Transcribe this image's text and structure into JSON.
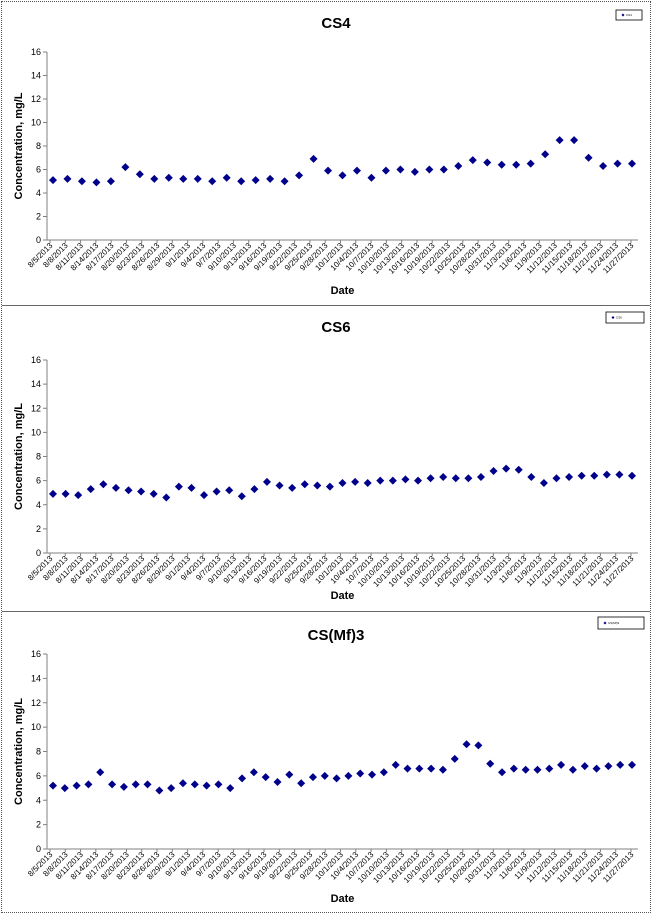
{
  "colors": {
    "marker": "#00008B",
    "axis": "#808080",
    "background": "#ffffff"
  },
  "chart_data": [
    {
      "type": "scatter",
      "title": "CS4",
      "xlabel": "Date",
      "ylabel": "Concentration, mg/L",
      "ylim": [
        0,
        16
      ],
      "yticks": [
        "0",
        "2",
        "4",
        "6",
        "8",
        "10",
        "12",
        "14",
        "16"
      ],
      "xlim": [
        "8/5/2013",
        "11/29/2013"
      ],
      "xticks": [
        "8/5/2013",
        "8/8/2013",
        "8/11/2013",
        "8/14/2013",
        "8/17/2013",
        "8/20/2013",
        "8/23/2013",
        "8/26/2013",
        "8/29/2013",
        "9/1/2013",
        "9/4/2013",
        "9/7/2013",
        "9/10/2013",
        "9/13/2013",
        "9/16/2013",
        "9/19/2013",
        "9/22/2013",
        "9/25/2013",
        "9/28/2013",
        "10/1/2013",
        "10/4/2013",
        "10/7/2013",
        "10/10/2013",
        "10/13/2013",
        "10/16/2013",
        "10/19/2013",
        "10/22/2013",
        "10/25/2013",
        "10/28/2013",
        "10/31/2013",
        "11/3/2013",
        "11/6/2013",
        "11/9/2013",
        "11/12/2013",
        "11/15/2013",
        "11/18/2013",
        "11/21/2013",
        "11/24/2013",
        "11/27/2013"
      ],
      "grid": false,
      "legend": {
        "position": "top-right",
        "entries": [
          "CS4"
        ]
      },
      "series": [
        {
          "x": [
            "8/5/2013",
            "8/7/2013",
            "8/9/2013",
            "8/12/2013",
            "8/19/2013",
            "8/22/2013",
            "8/24/2013",
            "8/26/2013",
            "8/29/2013",
            "9/2/2013",
            "9/5/2013",
            "9/9/2013",
            "9/12/2013",
            "9/14/2013",
            "9/20/2013",
            "9/23/2013",
            "9/26/2013",
            "9/30/2013",
            "10/5/2013",
            "10/7/2013",
            "10/11/2013",
            "10/14/2013",
            "10/16/2013",
            "10/20/2013",
            "10/23/2013",
            "10/27/2013",
            "10/30/2013",
            "11/1/2013",
            "11/2/2013",
            "11/6/2013",
            "11/9/2013",
            "11/10/2013",
            "11/13/2013",
            "11/16/2013",
            "11/18/2013",
            "11/22/2013",
            "11/26/2013",
            "11/29/2013",
            "11/30/2013",
            "11/29/2013",
            "11/30/2013"
          ],
          "values": [
            5.1,
            5.2,
            5.0,
            4.9,
            5.0,
            6.2,
            5.6,
            5.2,
            5.3,
            5.2,
            5.2,
            5.0,
            5.3,
            5.0,
            5.1,
            5.2,
            5.0,
            5.5,
            6.9,
            5.9,
            5.5,
            5.9,
            5.3,
            5.9,
            6.0,
            5.8,
            6.0,
            6.0,
            6.3,
            6.8,
            6.6,
            6.4,
            6.4,
            6.5,
            7.3,
            8.5,
            8.5,
            7.0,
            6.3,
            6.5,
            6.5
          ]
        }
      ]
    },
    {
      "type": "scatter",
      "title": "CS6",
      "xlabel": "Date",
      "ylabel": "Concentration, mg/L",
      "ylim": [
        0,
        16
      ],
      "yticks": [
        "0",
        "2",
        "4",
        "6",
        "8",
        "10",
        "12",
        "14",
        "16"
      ],
      "xlim": [
        "8/5/2013",
        "11/29/2013"
      ],
      "xticks": [
        "8/5/2013",
        "8/8/2013",
        "8/11/2013",
        "8/14/2013",
        "8/17/2013",
        "8/20/2013",
        "8/23/2013",
        "8/26/2013",
        "8/29/2013",
        "9/1/2013",
        "9/4/2013",
        "9/7/2013",
        "9/10/2013",
        "9/13/2013",
        "9/16/2013",
        "9/19/2013",
        "9/22/2013",
        "9/25/2013",
        "9/28/2013",
        "10/1/2013",
        "10/4/2013",
        "10/7/2013",
        "10/10/2013",
        "10/13/2013",
        "10/16/2013",
        "10/19/2013",
        "10/22/2013",
        "10/25/2013",
        "10/28/2013",
        "10/31/2013",
        "11/3/2013",
        "11/6/2013",
        "11/9/2013",
        "11/12/2013",
        "11/15/2013",
        "11/18/2013",
        "11/21/2013",
        "11/24/2013",
        "11/27/2013"
      ],
      "grid": false,
      "legend": {
        "position": "top-right",
        "entries": [
          "CS6"
        ]
      },
      "series": [
        {
          "x": [
            "8/5/2013",
            "8/7/2013",
            "8/9/2013",
            "8/12/2013",
            "8/17/2013",
            "8/20/2013",
            "8/22/2013",
            "8/24/2013",
            "8/28/2013",
            "8/30/2013",
            "9/1/2013",
            "9/4/2013",
            "9/6/2013",
            "9/8/2013",
            "9/12/2013",
            "9/14/2013",
            "9/16/2013",
            "9/19/2013",
            "9/22/2013",
            "9/24/2013",
            "9/30/2013",
            "10/2/2013",
            "10/6/2013",
            "10/8/2013",
            "10/11/2013",
            "10/15/2013",
            "10/17/2013",
            "10/20/2013",
            "10/23/2013",
            "10/25/2013",
            "10/28/2013",
            "10/31/2013",
            "11/2/2013",
            "11/4/2013",
            "11/7/2013",
            "11/9/2013",
            "11/11/2013",
            "11/13/2013",
            "11/15/2013",
            "11/17/2013",
            "11/20/2013",
            "11/23/2013",
            "11/26/2013",
            "11/28/2013",
            "11/30/2013",
            "12/2/2013",
            "12/4/2013"
          ],
          "values": [
            4.9,
            4.9,
            4.8,
            5.3,
            5.7,
            5.4,
            5.2,
            5.1,
            4.9,
            4.6,
            5.5,
            5.4,
            4.8,
            5.1,
            5.2,
            4.7,
            5.3,
            5.9,
            5.6,
            5.4,
            5.7,
            5.6,
            5.5,
            5.8,
            5.9,
            5.8,
            6.0,
            6.0,
            6.1,
            6.0,
            6.2,
            6.3,
            6.2,
            6.2,
            6.3,
            6.8,
            7.0,
            6.9,
            6.3,
            5.8,
            6.2,
            6.3,
            6.4,
            6.4,
            6.5,
            6.5,
            6.4
          ]
        }
      ]
    },
    {
      "type": "scatter",
      "title": "CS(Mf)3",
      "xlabel": "Date",
      "ylabel": "Concentration, mg/L",
      "ylim": [
        0,
        16
      ],
      "yticks": [
        "0",
        "2",
        "4",
        "6",
        "8",
        "10",
        "12",
        "14",
        "16"
      ],
      "xlim": [
        "8/5/2013",
        "11/29/2013"
      ],
      "xticks": [
        "8/5/2013",
        "8/8/2013",
        "8/11/2013",
        "8/14/2013",
        "8/17/2013",
        "8/20/2013",
        "8/23/2013",
        "8/26/2013",
        "8/29/2013",
        "9/1/2013",
        "9/4/2013",
        "9/7/2013",
        "9/10/2013",
        "9/13/2013",
        "9/16/2013",
        "9/19/2013",
        "9/22/2013",
        "9/25/2013",
        "9/28/2013",
        "10/1/2013",
        "10/4/2013",
        "10/7/2013",
        "10/10/2013",
        "10/13/2013",
        "10/16/2013",
        "10/19/2013",
        "10/22/2013",
        "10/25/2013",
        "10/28/2013",
        "10/31/2013",
        "11/3/2013",
        "11/6/2013",
        "11/9/2013",
        "11/12/2013",
        "11/15/2013",
        "11/18/2013",
        "11/21/2013",
        "11/24/2013",
        "11/27/2013"
      ],
      "grid": false,
      "legend": {
        "position": "top-right",
        "entries": [
          "CS(Mf)3"
        ]
      },
      "series": [
        {
          "x": [
            "8/5/2013",
            "8/7/2013",
            "8/9/2013",
            "8/12/2013",
            "8/17/2013",
            "8/20/2013",
            "8/22/2013",
            "8/24/2013",
            "8/27/2013",
            "8/29/2013",
            "8/31/2013",
            "9/3/2013",
            "9/5/2013",
            "9/7/2013",
            "9/10/2013",
            "9/12/2013",
            "9/14/2013",
            "9/17/2013",
            "9/19/2013",
            "9/21/2013",
            "9/26/2013",
            "9/28/2013",
            "10/2/2013",
            "10/4/2013",
            "10/6/2013",
            "10/10/2013",
            "10/12/2013",
            "10/14/2013",
            "10/17/2013",
            "10/20/2013",
            "10/22/2013",
            "10/25/2013",
            "10/27/2013",
            "10/30/2013",
            "11/1/2013",
            "11/3/2013",
            "11/6/2013",
            "11/8/2013",
            "11/10/2013",
            "11/13/2013",
            "11/15/2013",
            "11/17/2013",
            "11/19/2013",
            "11/22/2013",
            "11/25/2013",
            "11/27/2013",
            "11/29/2013",
            "12/1/2013",
            "12/3/2013",
            "12/5/2013"
          ],
          "values": [
            5.2,
            5.0,
            5.2,
            5.3,
            6.3,
            5.3,
            5.1,
            5.3,
            5.3,
            4.8,
            5.0,
            5.4,
            5.3,
            5.2,
            5.3,
            5.0,
            5.8,
            6.3,
            5.9,
            5.5,
            6.1,
            5.4,
            5.9,
            6.0,
            5.8,
            6.0,
            6.2,
            6.1,
            6.3,
            6.9,
            6.6,
            6.6,
            6.6,
            6.5,
            7.4,
            8.6,
            8.5,
            7.0,
            6.3,
            6.6,
            6.5,
            6.5,
            6.6,
            6.9,
            6.5,
            6.8,
            6.6,
            6.8,
            6.9,
            6.9
          ]
        }
      ]
    }
  ]
}
